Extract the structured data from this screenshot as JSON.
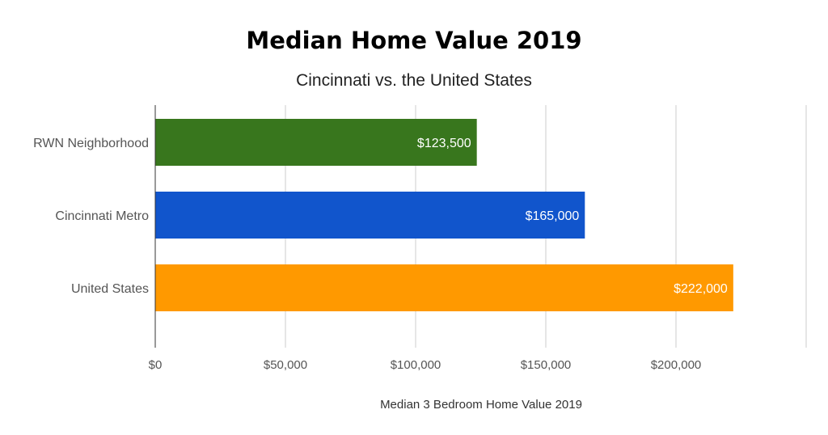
{
  "chart_data": {
    "type": "bar",
    "orientation": "horizontal",
    "title": "Median Home Value 2019",
    "subtitle": "Cincinnati vs. the United States",
    "xlabel": "Median 3 Bedroom Home Value 2019",
    "ylabel": "",
    "categories": [
      "RWN Neighborhood",
      "Cincinnati Metro",
      "United States"
    ],
    "values": [
      123500,
      165000,
      222000
    ],
    "data_labels": [
      "$123,500",
      "$165,000",
      "$222,000"
    ],
    "colors": [
      "#38761d",
      "#1155cc",
      "#ff9900"
    ],
    "xlim": [
      0,
      250000
    ],
    "x_ticks": [
      0,
      50000,
      100000,
      150000,
      200000,
      250000
    ],
    "x_tick_labels": [
      "$0",
      "$50,000",
      "$100,000",
      "$150,000",
      "$200,000",
      ""
    ],
    "grid": true,
    "legend": "none"
  }
}
